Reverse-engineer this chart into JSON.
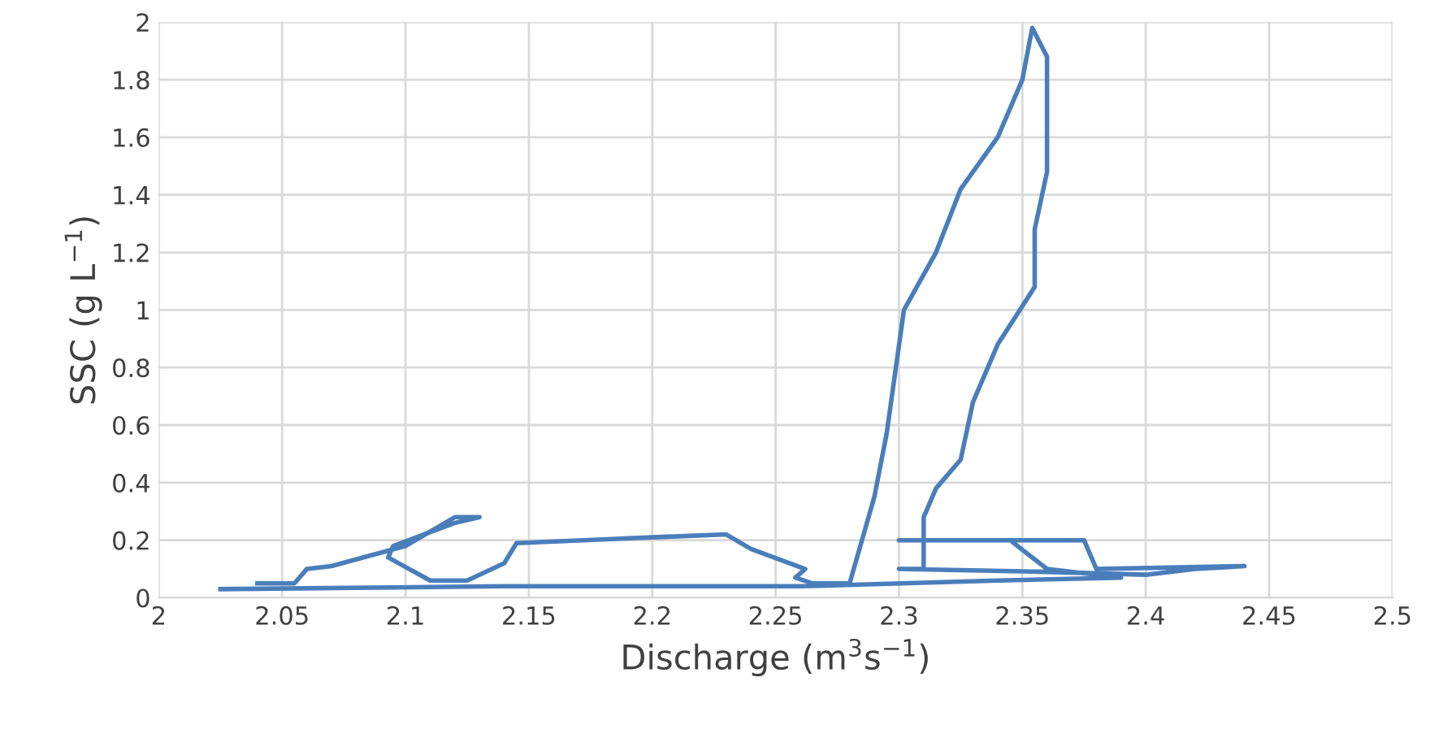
{
  "chart_data": {
    "type": "line",
    "xlabel": "Discharge (m$^{3}$s$^{−1}$)",
    "ylabel": "SSC (g L$^{−1}$)",
    "xlim": [
      2,
      2.5
    ],
    "xticks": [
      2,
      2.05,
      2.1,
      2.15,
      2.2,
      2.25,
      2.3,
      2.35,
      2.4,
      2.45,
      2.5
    ],
    "ylim": [
      0,
      2
    ],
    "yticks": [
      0,
      0.2,
      0.4,
      0.6,
      0.8,
      1,
      1.2,
      1.4,
      1.6,
      1.8,
      2
    ],
    "grid": true,
    "marker": "none",
    "line_style": "solid",
    "series": [
      {
        "color": "#4a7ebb",
        "x": [
          2.04,
          2.055,
          2.06,
          2.07,
          2.1,
          2.12,
          2.13,
          2.12,
          2.095,
          2.093,
          2.11,
          2.125,
          2.14,
          2.145,
          2.2,
          2.23,
          2.24,
          2.262,
          2.258,
          2.265,
          2.28,
          2.29,
          2.295,
          2.302,
          2.315,
          2.325,
          2.34,
          2.35,
          2.354,
          2.36,
          2.36,
          2.355,
          2.355,
          2.34,
          2.33,
          2.325,
          2.315,
          2.31,
          2.31,
          2.3,
          2.36,
          2.4,
          2.42,
          2.44,
          2.38,
          2.375,
          2.3,
          2.345,
          2.36,
          2.39,
          2.34,
          2.26,
          2.14,
          2.025
        ],
        "values": [
          0.05,
          0.05,
          0.1,
          0.11,
          0.18,
          0.28,
          0.28,
          0.26,
          0.18,
          0.14,
          0.06,
          0.06,
          0.12,
          0.19,
          0.21,
          0.22,
          0.17,
          0.1,
          0.07,
          0.05,
          0.05,
          0.35,
          0.57,
          1.0,
          1.2,
          1.42,
          1.6,
          1.8,
          1.98,
          1.88,
          1.48,
          1.28,
          1.08,
          0.88,
          0.68,
          0.48,
          0.38,
          0.28,
          0.1,
          0.1,
          0.09,
          0.08,
          0.1,
          0.11,
          0.1,
          0.2,
          0.2,
          0.2,
          0.1,
          0.07,
          0.06,
          0.04,
          0.04,
          0.03
        ]
      }
    ]
  }
}
